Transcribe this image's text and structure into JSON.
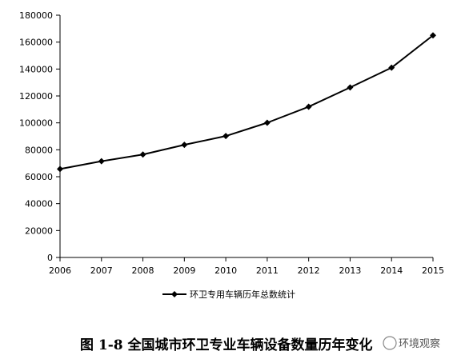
{
  "chart_data": {
    "type": "line",
    "x": [
      2006,
      2007,
      2008,
      2009,
      2010,
      2011,
      2012,
      2013,
      2014,
      2015
    ],
    "series": [
      {
        "name": "环卫专用车辆历年总数统计",
        "values": [
          65700,
          71500,
          76500,
          83700,
          90200,
          100100,
          112000,
          126300,
          141000,
          165000
        ],
        "color": "#000000",
        "marker": "diamond"
      }
    ],
    "xticks": [
      "2006",
      "2007",
      "2008",
      "2009",
      "2010",
      "2011",
      "2012",
      "2013",
      "2014",
      "2015"
    ],
    "yticks": [
      "0",
      "20000",
      "40000",
      "60000",
      "80000",
      "100000",
      "120000",
      "140000",
      "160000",
      "180000"
    ],
    "ylim": [
      0,
      180000
    ],
    "grid": false,
    "legend_position": "bottom",
    "title": "",
    "xlabel": "",
    "ylabel": ""
  },
  "caption": "图 1-8 全国城市环卫专业车辆设备数量历年变化",
  "watermark": "环境观察",
  "colors": {
    "line": "#000000",
    "axis": "#000000",
    "background": "#ffffff"
  }
}
